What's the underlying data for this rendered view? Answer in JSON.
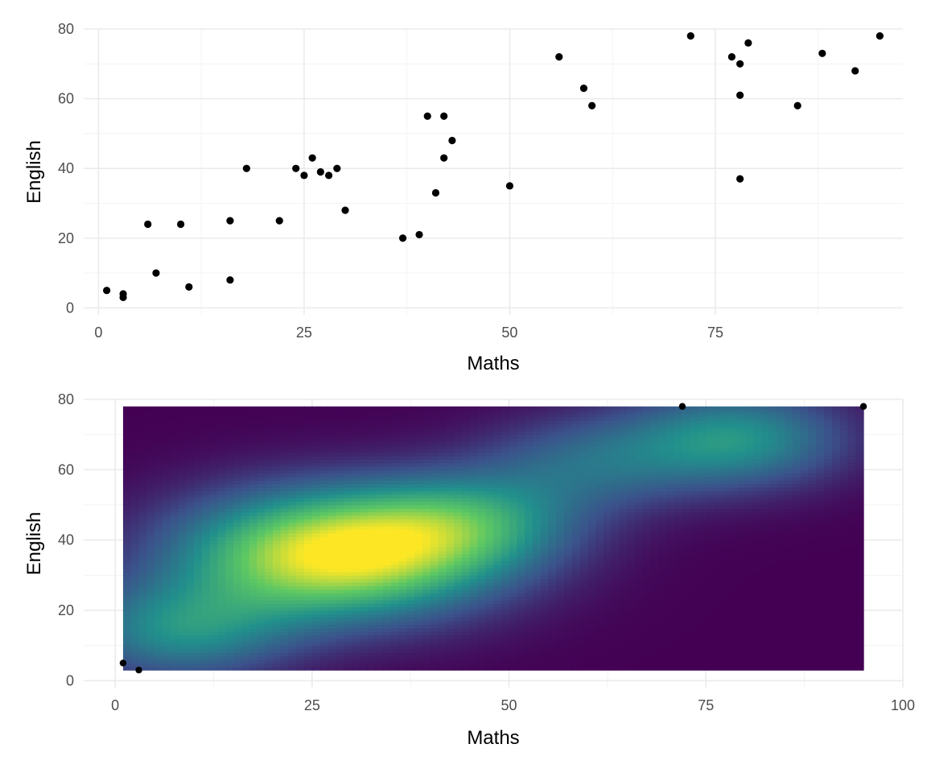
{
  "chart_data": [
    {
      "type": "scatter",
      "xlabel": "Maths",
      "ylabel": "English",
      "xlim": [
        -1.8,
        97.8
      ],
      "ylim": [
        -2,
        80
      ],
      "x_ticks": [
        0,
        25,
        50,
        75
      ],
      "y_ticks": [
        0,
        20,
        40,
        60,
        80
      ],
      "grid": true,
      "point_color": "#000000",
      "points": [
        {
          "x": 1,
          "y": 5
        },
        {
          "x": 3,
          "y": 4
        },
        {
          "x": 3,
          "y": 3
        },
        {
          "x": 6,
          "y": 24
        },
        {
          "x": 7,
          "y": 10
        },
        {
          "x": 10,
          "y": 24
        },
        {
          "x": 11,
          "y": 6
        },
        {
          "x": 16,
          "y": 25
        },
        {
          "x": 16,
          "y": 8
        },
        {
          "x": 18,
          "y": 40
        },
        {
          "x": 22,
          "y": 25
        },
        {
          "x": 24,
          "y": 40
        },
        {
          "x": 25,
          "y": 38
        },
        {
          "x": 26,
          "y": 43
        },
        {
          "x": 27,
          "y": 39
        },
        {
          "x": 28,
          "y": 38
        },
        {
          "x": 29,
          "y": 40
        },
        {
          "x": 30,
          "y": 28
        },
        {
          "x": 37,
          "y": 20
        },
        {
          "x": 39,
          "y": 21
        },
        {
          "x": 40,
          "y": 55
        },
        {
          "x": 41,
          "y": 33
        },
        {
          "x": 42,
          "y": 55
        },
        {
          "x": 42,
          "y": 43
        },
        {
          "x": 43,
          "y": 48
        },
        {
          "x": 50,
          "y": 35
        },
        {
          "x": 56,
          "y": 72
        },
        {
          "x": 59,
          "y": 63
        },
        {
          "x": 60,
          "y": 58
        },
        {
          "x": 72,
          "y": 78
        },
        {
          "x": 77,
          "y": 72
        },
        {
          "x": 78,
          "y": 70
        },
        {
          "x": 78,
          "y": 61
        },
        {
          "x": 78,
          "y": 37
        },
        {
          "x": 79,
          "y": 76
        },
        {
          "x": 85,
          "y": 58
        },
        {
          "x": 88,
          "y": 73
        },
        {
          "x": 92,
          "y": 68
        },
        {
          "x": 95,
          "y": 78
        }
      ]
    },
    {
      "type": "heatmap",
      "xlabel": "Maths",
      "ylabel": "English",
      "xlim": [
        -4,
        100
      ],
      "ylim": [
        -2,
        80
      ],
      "x_ticks": [
        0,
        25,
        50,
        75,
        100
      ],
      "y_ticks": [
        0,
        20,
        40,
        60,
        80
      ],
      "grid": true,
      "fill_range": {
        "x": [
          1,
          95
        ],
        "y": [
          3,
          78
        ]
      },
      "colormap": [
        "#440154",
        "#3b528b",
        "#21908c",
        "#5dc863",
        "#fde725"
      ],
      "density_peaks": [
        {
          "x": 28,
          "y": 36,
          "level": 1.0
        },
        {
          "x": 8,
          "y": 14,
          "level": 0.45
        },
        {
          "x": 79,
          "y": 69,
          "level": 0.5
        },
        {
          "x": 45,
          "y": 45,
          "level": 0.4
        },
        {
          "x": 60,
          "y": 62,
          "level": 0.3
        }
      ],
      "visible_points": [
        {
          "x": 1,
          "y": 5
        },
        {
          "x": 3,
          "y": 3
        },
        {
          "x": 72,
          "y": 78
        },
        {
          "x": 95,
          "y": 78
        }
      ]
    }
  ]
}
